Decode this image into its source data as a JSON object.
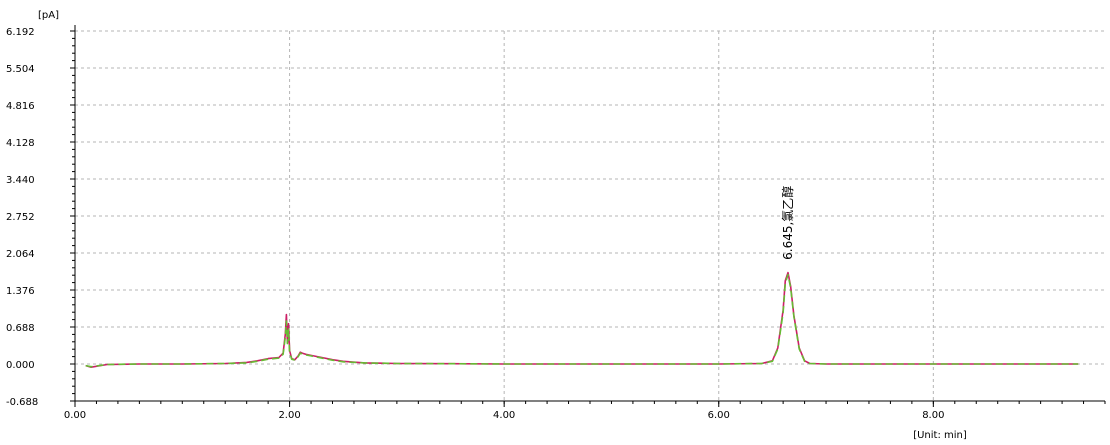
{
  "chart_data": {
    "type": "line",
    "y_unit_label": "[pA]",
    "x_unit_label": "[Unit: min]",
    "xlim": [
      0,
      9.6
    ],
    "ylim": [
      -0.688,
      6.192
    ],
    "x_ticks": [
      "0.00",
      "2.00",
      "4.00",
      "6.00",
      "8.00"
    ],
    "x_tick_values": [
      0,
      2,
      4,
      6,
      8
    ],
    "y_ticks": [
      "6.192",
      "5.504",
      "4.816",
      "4.128",
      "3.440",
      "2.752",
      "2.064",
      "1.376",
      "0.688",
      "0.000",
      "-0.688"
    ],
    "y_tick_values": [
      6.192,
      5.504,
      4.816,
      4.128,
      3.44,
      2.752,
      2.064,
      1.376,
      0.688,
      0.0,
      -0.688
    ],
    "grid": true,
    "annotations": [
      {
        "text": "6.645,氯乙醇",
        "x": 6.645,
        "y": 1.75
      }
    ],
    "series": [
      {
        "color": "#cc1f66",
        "x": [
          0.1,
          0.15,
          0.3,
          0.6,
          1.0,
          1.4,
          1.6,
          1.7,
          1.8,
          1.9,
          1.94,
          1.96,
          1.97,
          1.98,
          1.99,
          2.0,
          2.02,
          2.05,
          2.08,
          2.1,
          2.12,
          2.15,
          2.2,
          2.3,
          2.4,
          2.5,
          2.7,
          3.0,
          3.5,
          4.0,
          5.0,
          6.0,
          6.4,
          6.5,
          6.55,
          6.6,
          6.62,
          6.645,
          6.67,
          6.7,
          6.75,
          6.8,
          6.85,
          7.0,
          8.0,
          9.0,
          9.35
        ],
        "y": [
          -0.03,
          -0.06,
          -0.01,
          0.0,
          0.0,
          0.01,
          0.03,
          0.06,
          0.1,
          0.12,
          0.2,
          0.55,
          0.92,
          0.4,
          0.75,
          0.25,
          0.1,
          0.08,
          0.15,
          0.22,
          0.2,
          0.18,
          0.16,
          0.12,
          0.08,
          0.05,
          0.02,
          0.01,
          0.005,
          0.0,
          0.0,
          0.0,
          0.01,
          0.06,
          0.3,
          1.0,
          1.55,
          1.7,
          1.45,
          0.9,
          0.3,
          0.06,
          0.01,
          0.0,
          0.0,
          0.0,
          0.0
        ]
      },
      {
        "color": "#66bb33",
        "x": [
          0.1,
          0.15,
          0.3,
          0.6,
          1.0,
          1.4,
          1.6,
          1.7,
          1.8,
          1.9,
          1.94,
          1.96,
          1.97,
          1.98,
          1.99,
          2.0,
          2.02,
          2.05,
          2.08,
          2.1,
          2.12,
          2.15,
          2.2,
          2.3,
          2.4,
          2.5,
          2.7,
          3.0,
          3.5,
          4.0,
          5.0,
          6.0,
          6.4,
          6.5,
          6.55,
          6.6,
          6.62,
          6.645,
          6.67,
          6.7,
          6.75,
          6.8,
          6.85,
          7.0,
          8.0,
          9.0,
          9.35
        ],
        "y": [
          -0.03,
          -0.05,
          -0.01,
          0.0,
          0.0,
          0.01,
          0.02,
          0.05,
          0.09,
          0.11,
          0.18,
          0.5,
          0.8,
          0.38,
          0.65,
          0.22,
          0.09,
          0.07,
          0.14,
          0.2,
          0.19,
          0.17,
          0.15,
          0.11,
          0.07,
          0.04,
          0.02,
          0.01,
          0.005,
          0.0,
          0.0,
          0.0,
          0.01,
          0.05,
          0.28,
          0.95,
          1.5,
          1.66,
          1.42,
          0.88,
          0.28,
          0.05,
          0.01,
          0.0,
          0.0,
          0.0,
          0.0
        ]
      }
    ]
  }
}
